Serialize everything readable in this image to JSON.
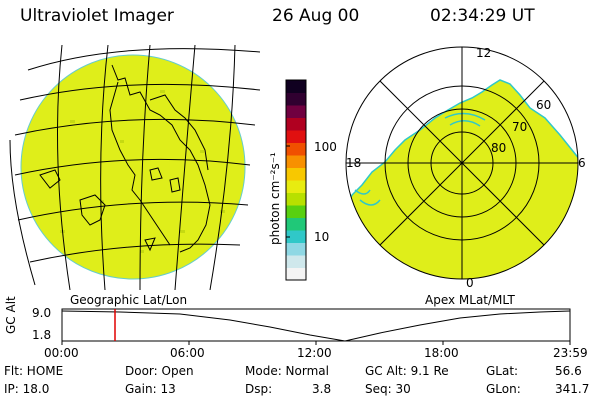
{
  "header": {
    "instrument": "Ultraviolet Imager",
    "date": "26 Aug 00",
    "time": "02:34:29 UT"
  },
  "colorbar": {
    "unit_label": "photon cm⁻²s⁻¹",
    "tick_100": "100",
    "tick_10": "10",
    "colors": [
      "#f4f4f4",
      "#cfe8ec",
      "#8fd8e4",
      "#30c8c8",
      "#20c878",
      "#58d010",
      "#b8e000",
      "#e8ec10",
      "#f8c800",
      "#f89000",
      "#f05000",
      "#e01010",
      "#b00020",
      "#700040",
      "#300030",
      "#100020"
    ]
  },
  "geo_panel": {
    "label": "Geographic Lat/Lon",
    "fill_color": "#dfee1a"
  },
  "polar_panel": {
    "label": "Apex MLat/MLT",
    "mlt_12": "12",
    "mlt_18": "18",
    "mlt_6": "6",
    "mlt_0": "0",
    "lat_60": "60",
    "lat_70": "70",
    "lat_80": "80",
    "fill_color": "#dfee1a"
  },
  "altitude_plot": {
    "axis_title": "GC Alt",
    "y_high": "9.0",
    "y_low": "1.8",
    "x_ticks": [
      "00:00",
      "06:00",
      "12:00",
      "18:00",
      "23:59"
    ],
    "marker_color": "#e00000"
  },
  "status": {
    "flt": "Flt: HOME",
    "door": "Door: Open",
    "mode": "Mode: Normal",
    "gc_alt": "GC Alt: 9.1 Re",
    "glat_label": "GLat:",
    "glat_value": "56.6",
    "ip": "IP: 18.0",
    "gain": "Gain: 13",
    "dsp_label": "Dsp:",
    "dsp_value": "3.8",
    "seq": "Seq: 30",
    "glon_label": "GLon:",
    "glon_value": "341.7"
  }
}
